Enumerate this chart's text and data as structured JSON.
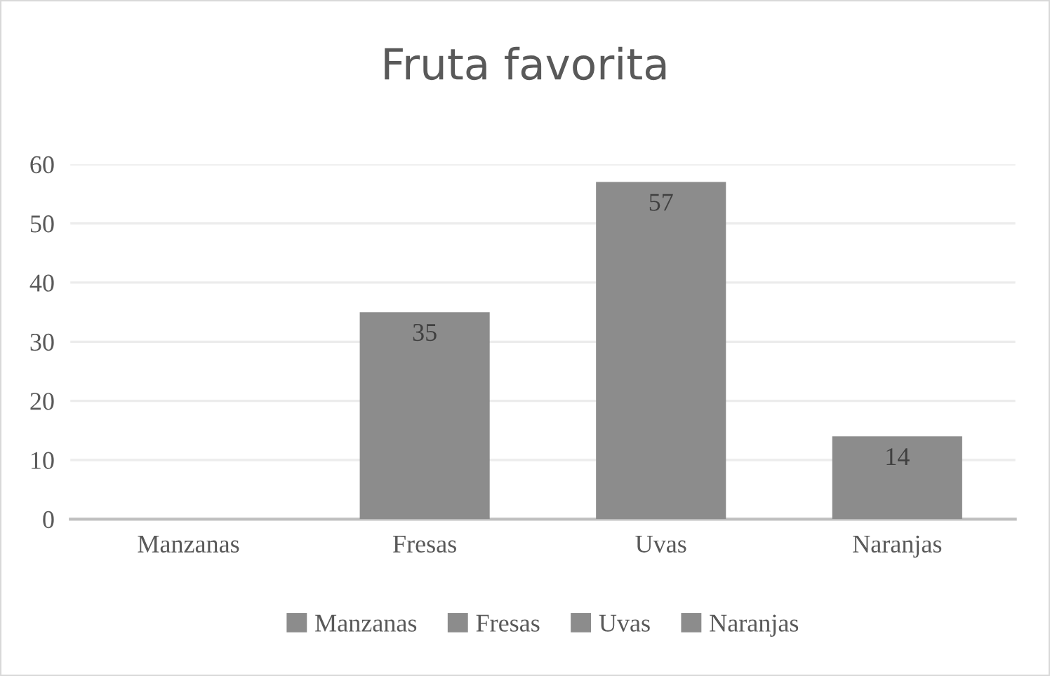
{
  "chart_data": {
    "type": "bar",
    "title": "Fruta favorita",
    "stacked": true,
    "categories": [
      "Manzanas",
      "Fresas",
      "Uvas",
      "Naranjas"
    ],
    "series": [
      {
        "name": "Manzanas",
        "color": "#8c8c8c",
        "values": [
          0,
          null,
          null,
          null
        ],
        "value_labels": [
          null,
          null,
          null,
          null
        ]
      },
      {
        "name": "Fresas",
        "color": "#8c8c8c",
        "values": [
          null,
          35,
          null,
          null
        ],
        "value_labels": [
          null,
          "35",
          null,
          null
        ]
      },
      {
        "name": "Uvas",
        "color": "#8c8c8c",
        "values": [
          null,
          null,
          57,
          null
        ],
        "value_labels": [
          null,
          null,
          "57",
          null
        ]
      },
      {
        "name": "Naranjas",
        "color": "#8c8c8c",
        "values": [
          null,
          null,
          null,
          14
        ],
        "value_labels": [
          null,
          null,
          null,
          "14"
        ]
      }
    ],
    "ylim": [
      0,
      60
    ],
    "yticks": [
      0,
      10,
      20,
      30,
      40,
      50,
      60
    ],
    "grid": "y",
    "legend": "bottom"
  }
}
